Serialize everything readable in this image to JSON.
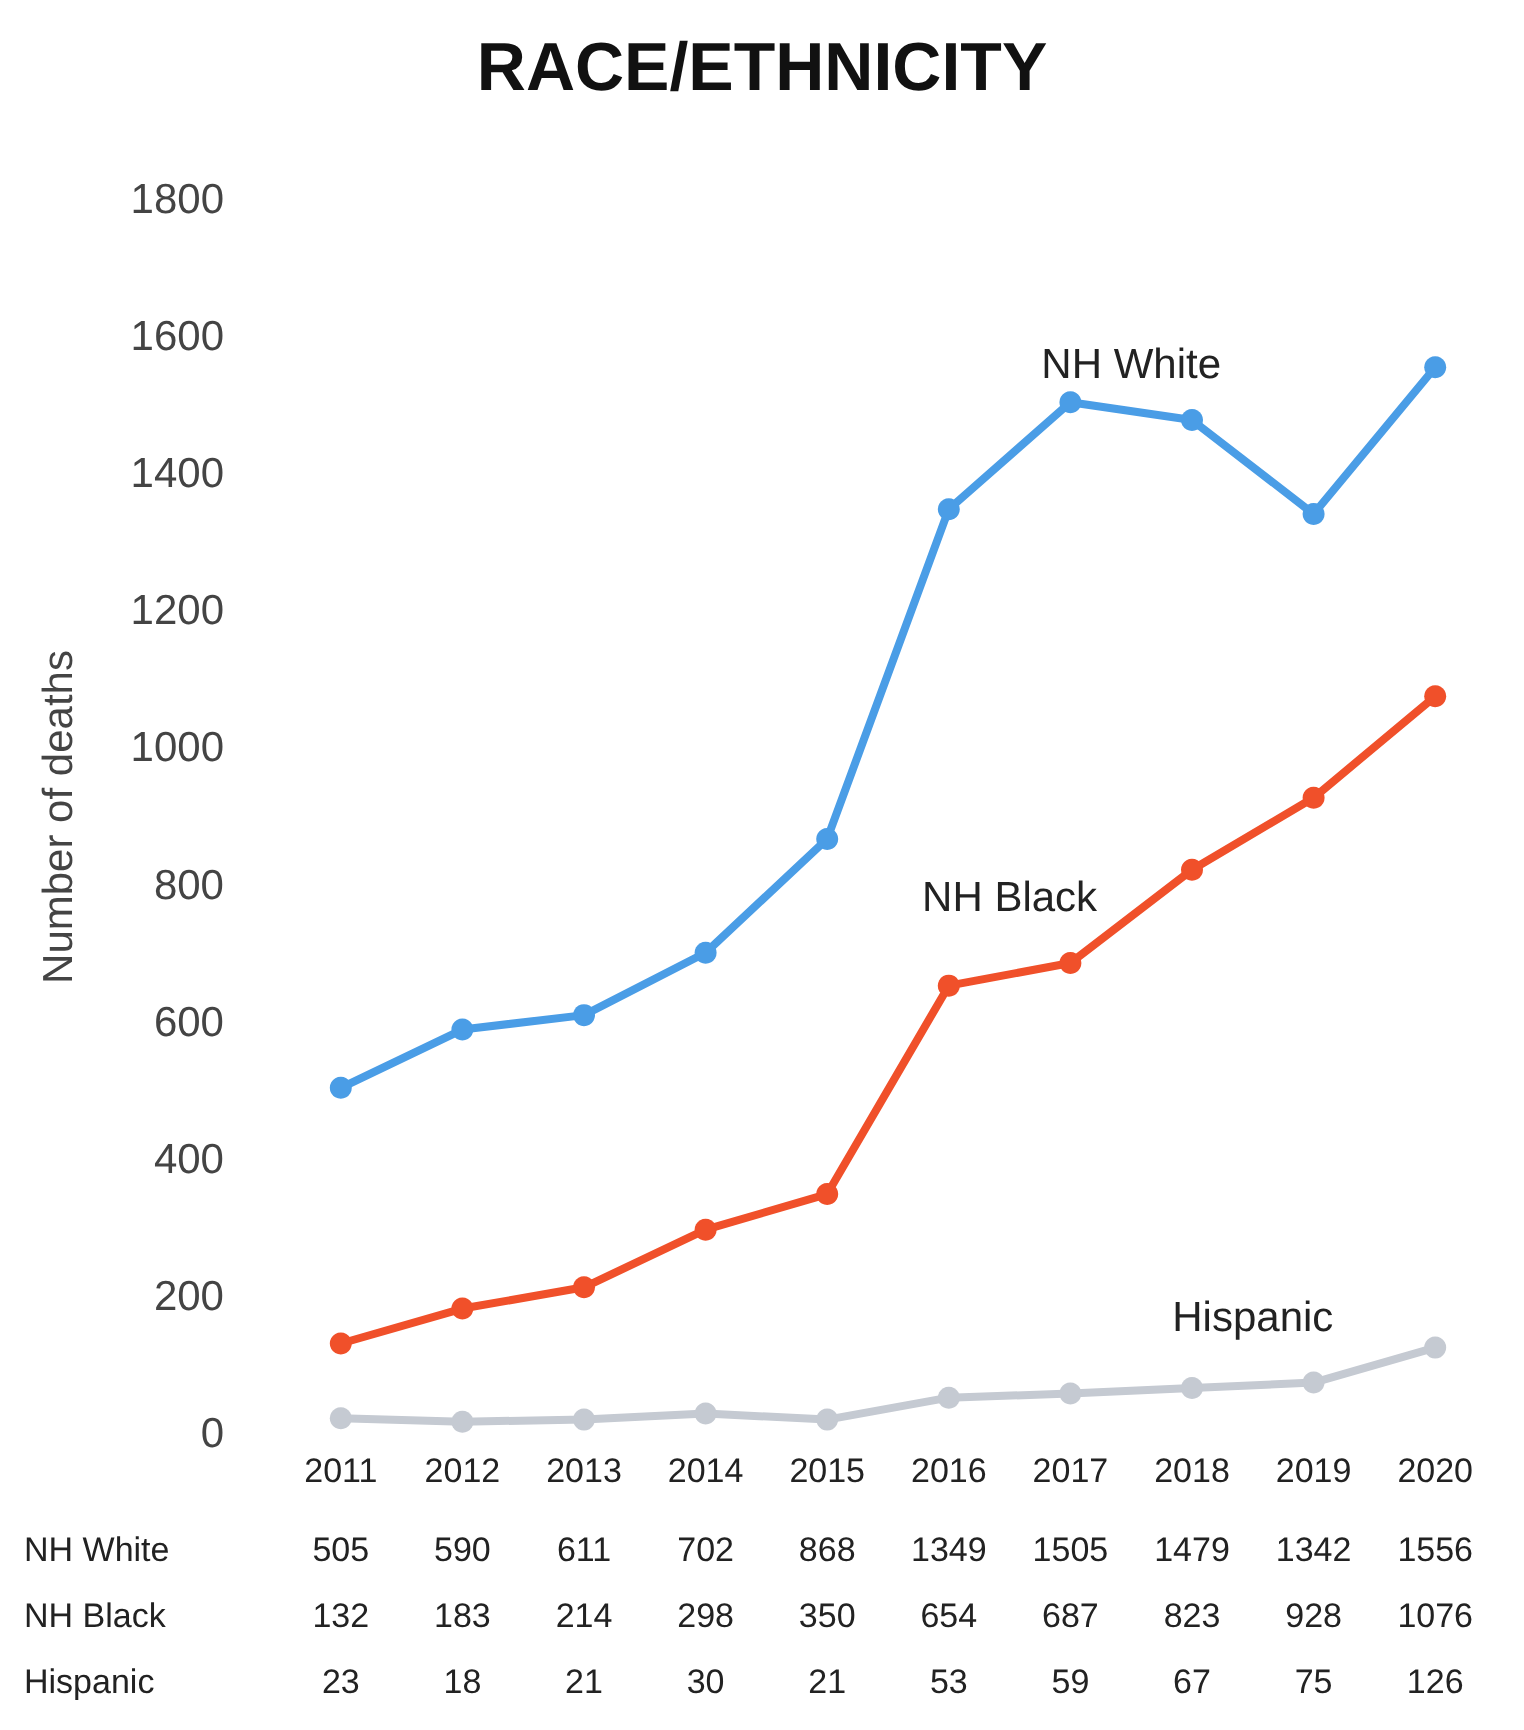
{
  "chart_data": {
    "type": "line",
    "title": "RACE/ETHNICITY",
    "ylabel": "Number of deaths",
    "categories": [
      "2011",
      "2012",
      "2013",
      "2014",
      "2015",
      "2016",
      "2017",
      "2018",
      "2019",
      "2020"
    ],
    "series": [
      {
        "name": "NH White",
        "color": "#4a9de6",
        "values": [
          505,
          590,
          611,
          702,
          868,
          1349,
          1505,
          1479,
          1342,
          1556
        ]
      },
      {
        "name": "NH Black",
        "color": "#f0502a",
        "values": [
          132,
          183,
          214,
          298,
          350,
          654,
          687,
          823,
          928,
          1076
        ]
      },
      {
        "name": "Hispanic",
        "color": "#c5cad2",
        "values": [
          23,
          18,
          21,
          30,
          21,
          53,
          59,
          67,
          75,
          126
        ]
      }
    ],
    "ylim": [
      0,
      1800
    ],
    "yticks": [
      0,
      200,
      400,
      600,
      800,
      1000,
      1200,
      1400,
      1600,
      1800
    ],
    "grid": false,
    "legend": false,
    "marker": "circle",
    "line_style": "solid",
    "data_labels": true
  }
}
